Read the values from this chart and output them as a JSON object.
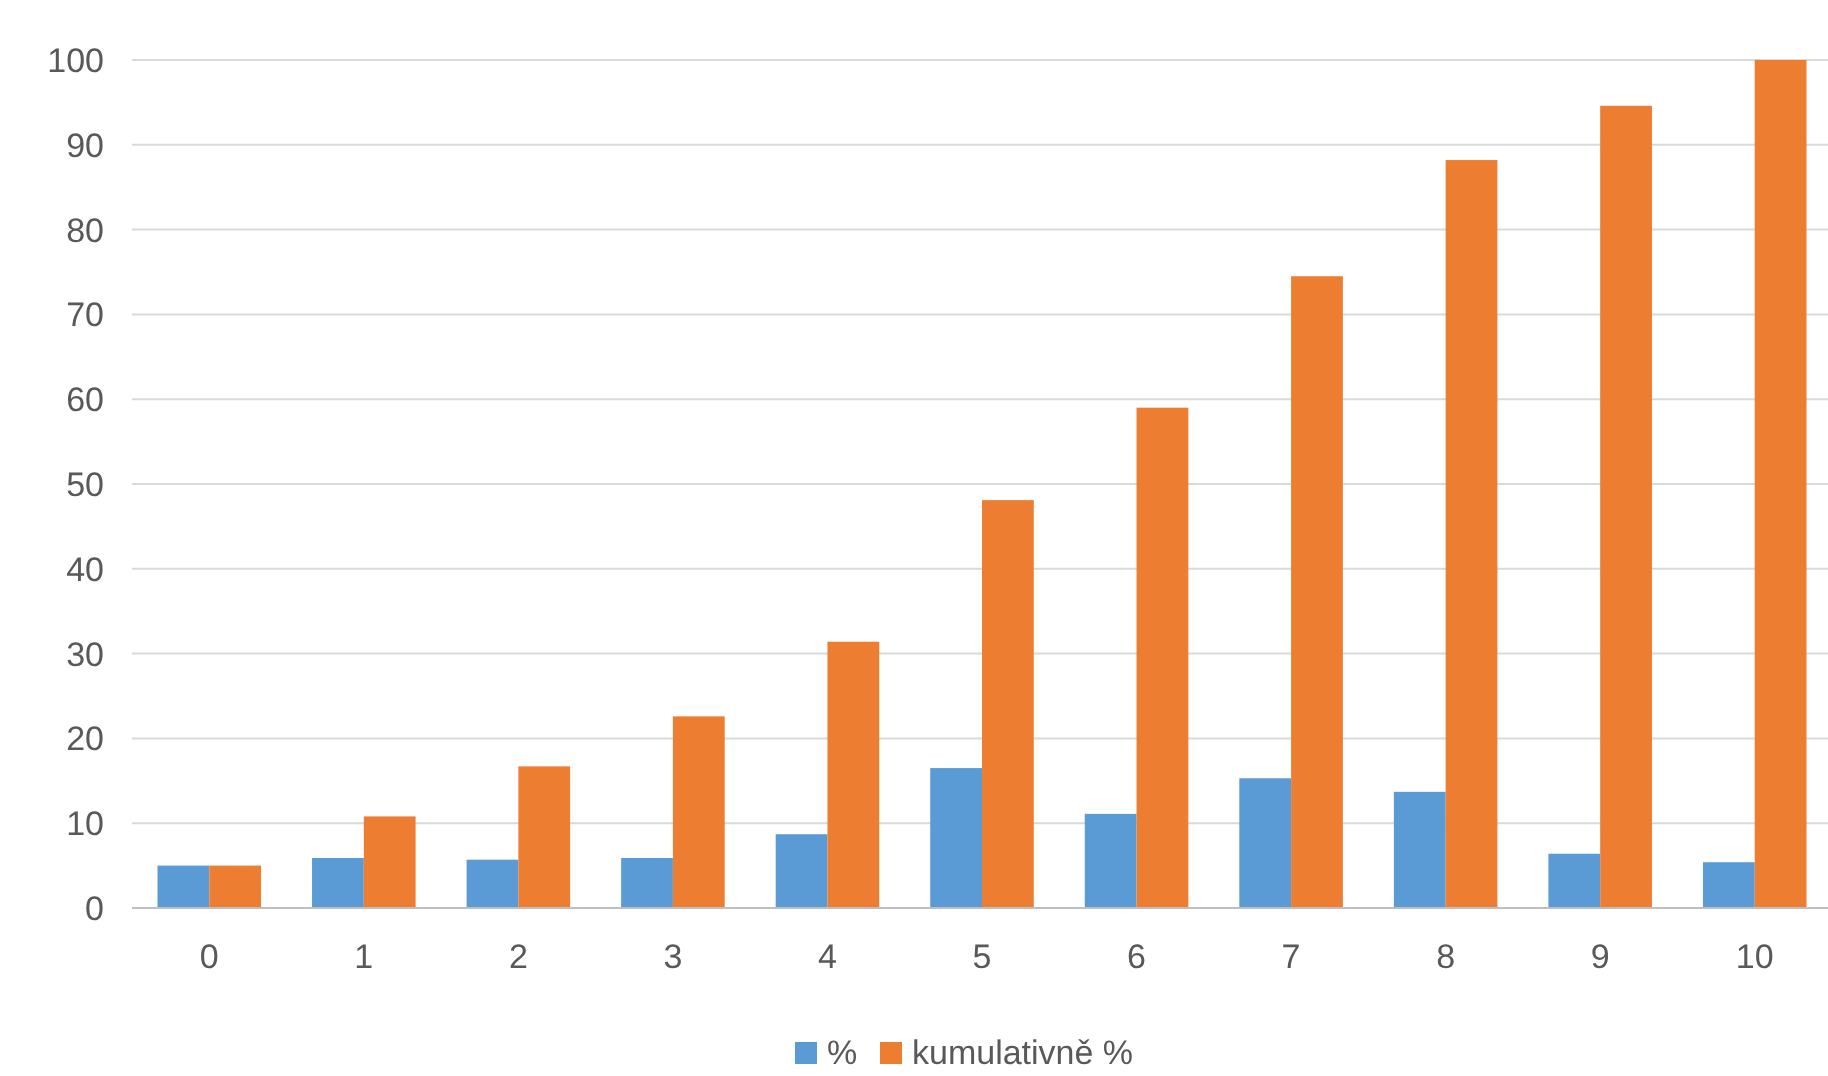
{
  "chart_data": {
    "type": "bar",
    "categories": [
      "0",
      "1",
      "2",
      "3",
      "4",
      "5",
      "6",
      "7",
      "8",
      "9",
      "10"
    ],
    "series": [
      {
        "name": "%",
        "color": "#5b9bd5",
        "values": [
          5,
          5.9,
          5.7,
          5.9,
          8.7,
          16.5,
          11.1,
          15.3,
          13.7,
          6.4,
          5.4
        ]
      },
      {
        "name": "kumulativně %",
        "color": "#ed7d31",
        "values": [
          5,
          10.8,
          16.7,
          22.6,
          31.4,
          48.1,
          59,
          74.5,
          88.2,
          94.6,
          100
        ]
      }
    ],
    "ylim": [
      0,
      100
    ],
    "yticks": [
      0,
      10,
      20,
      30,
      40,
      50,
      60,
      70,
      80,
      90,
      100
    ],
    "grid": "y",
    "legend": "bottom"
  }
}
